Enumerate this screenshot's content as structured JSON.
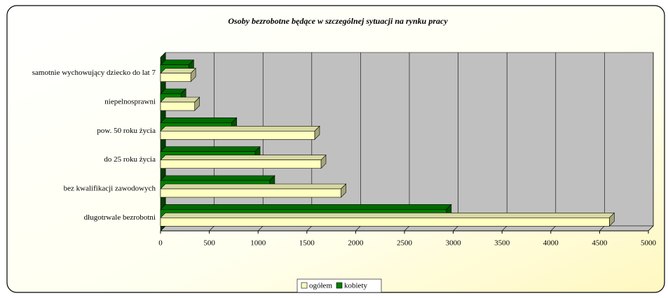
{
  "chart_data": {
    "type": "bar3d_horizontal",
    "title": "Osoby bezrobotne będące w szczególnej sytuacji na rynku pracy",
    "categories": [
      "samotnie wychowujący dziecko do lat 7",
      "niepelnosprawni",
      "pow. 50 roku życia",
      "do 25 roku życia",
      "bez kwalifikacji zawodowych",
      "długotrwale bezrobotni"
    ],
    "series": [
      {
        "name": "ogółem",
        "color": "#ffffc0",
        "values": [
          310,
          350,
          1580,
          1645,
          1850,
          4600
        ]
      },
      {
        "name": "kobiety",
        "color": "#008000",
        "values": [
          290,
          210,
          730,
          970,
          1120,
          2930
        ]
      }
    ],
    "xlim": [
      0,
      5000
    ],
    "xticks": [
      0,
      500,
      1000,
      1500,
      2000,
      2500,
      3000,
      3500,
      4000,
      4500,
      5000
    ],
    "grid": true,
    "legend": "bottom"
  }
}
